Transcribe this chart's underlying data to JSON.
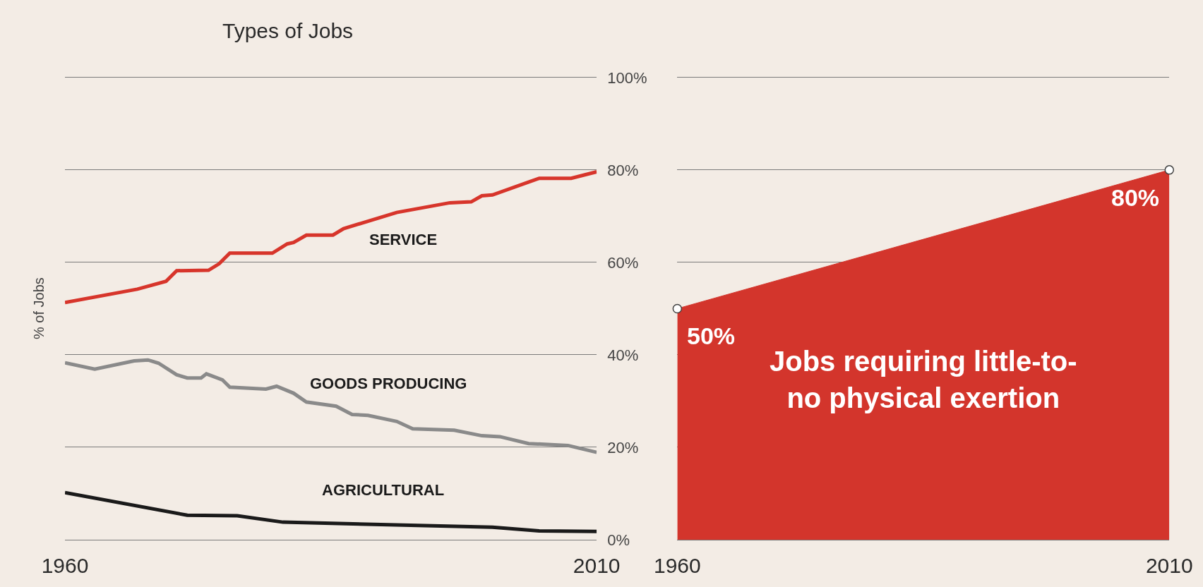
{
  "chart_data": [
    {
      "type": "line",
      "title": "Types of Jobs",
      "ylabel": "% of Jobs",
      "series": [
        {
          "name": "SERVICE",
          "color": "#d7352b",
          "x": [
            1960,
            1966.8,
            1969.5,
            1970.5,
            1973.5,
            1974.5,
            1975.5,
            1979.5,
            1980.9,
            1981.5,
            1982.7,
            1985.2,
            1986.2,
            1991.2,
            1996.2,
            1998.2,
            1999.2,
            2000.2,
            2004.6,
            2007.6,
            2010
          ],
          "values": [
            51.3,
            54.2,
            55.9,
            58.2,
            58.3,
            59.7,
            62.0,
            62.0,
            64.0,
            64.3,
            65.9,
            65.9,
            67.3,
            70.8,
            72.9,
            73.1,
            74.4,
            74.6,
            78.2,
            78.2,
            79.6
          ]
        },
        {
          "name": "GOODS PRODUCING",
          "color": "#8a8a8a",
          "x": [
            1960,
            1962.8,
            1966.5,
            1967.8,
            1968.8,
            1970.5,
            1971.5,
            1972.8,
            1973.3,
            1974.8,
            1975.5,
            1978.9,
            1979.9,
            1981.5,
            1982.7,
            1985.5,
            1987.0,
            1988.5,
            1991.2,
            1992.7,
            1996.6,
            1999.2,
            2000.9,
            2003.6,
            2007.3,
            2010
          ],
          "values": [
            38.3,
            36.9,
            38.7,
            38.9,
            38.2,
            35.7,
            35.0,
            35.0,
            35.9,
            34.6,
            33.0,
            32.6,
            33.2,
            31.7,
            29.8,
            28.9,
            27.1,
            26.9,
            25.6,
            24.0,
            23.7,
            22.5,
            22.3,
            20.8,
            20.4,
            18.9
          ]
        },
        {
          "name": "AGRICULTURAL",
          "color": "#1a1a1a",
          "x": [
            1960,
            1971.5,
            1976.2,
            1980.5,
            2000.2,
            2004.6,
            2010
          ],
          "values": [
            10.2,
            5.3,
            5.2,
            3.8,
            2.7,
            1.9,
            1.8
          ]
        }
      ],
      "xlim": [
        1960,
        2010
      ],
      "xticks": [
        1960,
        2010
      ],
      "ylim": [
        0,
        100
      ],
      "yticks": [
        {
          "value": 0,
          "label": "0%"
        },
        {
          "value": 20,
          "label": "20%"
        },
        {
          "value": 40,
          "label": "40%"
        },
        {
          "value": 60,
          "label": "60%"
        },
        {
          "value": 80,
          "label": "80%"
        },
        {
          "value": 100,
          "label": "100%"
        }
      ],
      "grid": "y"
    },
    {
      "type": "area",
      "x": [
        1960,
        2010
      ],
      "values": [
        50,
        80
      ],
      "color": "#d3352c",
      "value_labels": [
        "50%",
        "80%"
      ],
      "marker": "circle",
      "annotations": [
        "Jobs requiring little-to-no physical exertion"
      ],
      "xlim": [
        1960,
        2010
      ],
      "xticks": [
        1960,
        2010
      ],
      "ylim": [
        0,
        100
      ],
      "yticks": [
        {
          "value": 0,
          "label": null
        },
        {
          "value": 20,
          "label": null
        },
        {
          "value": 40,
          "label": null
        },
        {
          "value": 60,
          "label": null
        },
        {
          "value": 80,
          "label": null
        },
        {
          "value": 100,
          "label": null
        }
      ],
      "grid": "y",
      "tick_labels": "x"
    }
  ]
}
